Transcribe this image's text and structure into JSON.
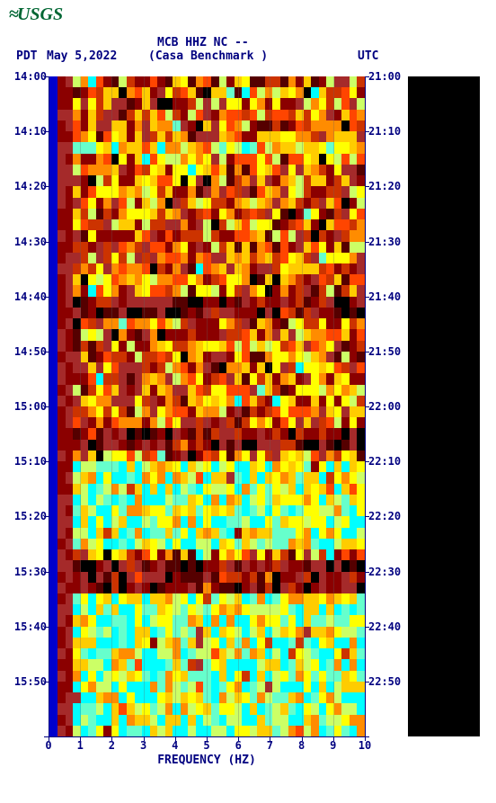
{
  "logo": {
    "agency": "USGS"
  },
  "header": {
    "timezone_left": "PDT",
    "date": "May 5,2022",
    "station": "MCB HHZ NC --",
    "site": "(Casa Benchmark )",
    "timezone_right": "UTC"
  },
  "axes": {
    "xlabel": "FREQUENCY (HZ)",
    "xticks": [
      0,
      1,
      2,
      3,
      4,
      5,
      6,
      7,
      8,
      9,
      10
    ],
    "xlim": [
      0,
      10
    ],
    "y_left_ticks": [
      "14:00",
      "14:10",
      "14:20",
      "14:30",
      "14:40",
      "14:50",
      "15:00",
      "15:10",
      "15:20",
      "15:30",
      "15:40",
      "15:50"
    ],
    "y_right_ticks": [
      "21:00",
      "21:10",
      "21:20",
      "21:30",
      "21:40",
      "21:50",
      "22:00",
      "22:10",
      "22:20",
      "22:30",
      "22:40",
      "22:50"
    ],
    "n_time_slots": 12
  },
  "style": {
    "axis_color": "#000080",
    "background": "#ffffff",
    "spectro_bg": "#000000",
    "blue_strip": "#0000cc",
    "text_color": "#000080",
    "logo_color": "#006633"
  },
  "spectrogram": {
    "type": "heatmap",
    "rows": 60,
    "cols": 40,
    "palette": [
      "#000000",
      "#550000",
      "#8b0000",
      "#a52a2a",
      "#cc3300",
      "#ff4500",
      "#ff8c00",
      "#ffcc00",
      "#ffff00",
      "#ccff66",
      "#66ffcc",
      "#00ffff"
    ],
    "dark_red_band_left_cols": 2,
    "bands": [
      {
        "row_start": 0,
        "row_end": 6,
        "intensity": "mid"
      },
      {
        "row_start": 6,
        "row_end": 7,
        "intensity": "bright"
      },
      {
        "row_start": 7,
        "row_end": 20,
        "intensity": "mid"
      },
      {
        "row_start": 20,
        "row_end": 22,
        "intensity": "dark"
      },
      {
        "row_start": 22,
        "row_end": 32,
        "intensity": "mid"
      },
      {
        "row_start": 32,
        "row_end": 34,
        "intensity": "dark"
      },
      {
        "row_start": 34,
        "row_end": 35,
        "intensity": "mid"
      },
      {
        "row_start": 35,
        "row_end": 43,
        "intensity": "very_bright"
      },
      {
        "row_start": 43,
        "row_end": 44,
        "intensity": "mid"
      },
      {
        "row_start": 44,
        "row_end": 47,
        "intensity": "dark"
      },
      {
        "row_start": 47,
        "row_end": 60,
        "intensity": "very_bright"
      }
    ],
    "intensity_map": {
      "dark": {
        "base": 2,
        "spread": 2
      },
      "mid": {
        "base": 5,
        "spread": 4
      },
      "bright": {
        "base": 8,
        "spread": 3
      },
      "very_bright": {
        "base": 9,
        "spread": 3
      }
    }
  }
}
